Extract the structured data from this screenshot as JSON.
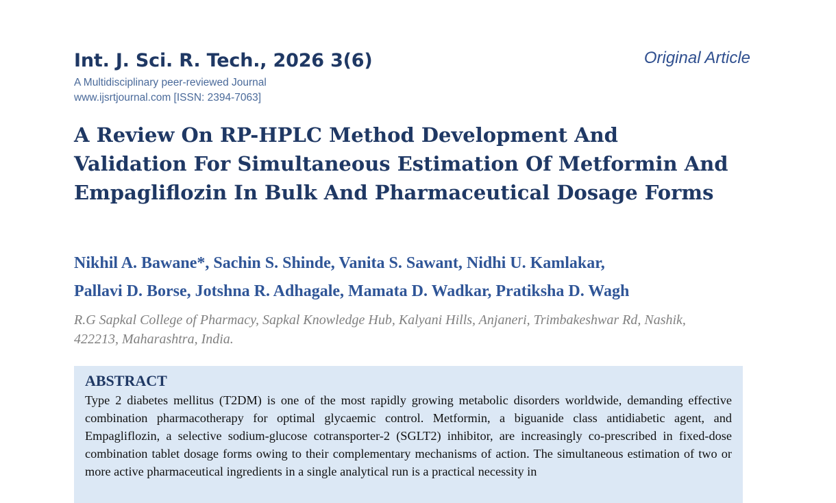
{
  "journal": {
    "title": "Int. J. Sci. R. Tech., 2026 3(6)",
    "tagline": "A Multidisciplinary peer-reviewed Journal",
    "website": "www.ijsrtjournal.com [ISSN: 2394-7063]"
  },
  "article_type": "Original Article",
  "paper": {
    "title": "A Review On RP-HPLC Method Development And Validation For Simultaneous Estimation Of Metformin And Empagliflozin In Bulk And Pharmaceutical Dosage Forms",
    "authors_line1": "Nikhil A. Bawane*, Sachin S. Shinde, Vanita S. Sawant, Nidhi U. Kamlakar,",
    "authors_line2": "Pallavi D. Borse, Jotshna R. Adhagale, Mamata D. Wadkar, Pratiksha D. Wagh",
    "affiliation": "R.G Sapkal College of Pharmacy, Sapkal Knowledge Hub, Kalyani Hills, Anjaneri, Trimbakeshwar Rd, Nashik, 422213, Maharashtra, India."
  },
  "abstract": {
    "heading": "ABSTRACT",
    "text": "Type 2 diabetes mellitus (T2DM) is one of the most rapidly growing metabolic disorders worldwide, demanding effective combination pharmacotherapy for optimal glycaemic control. Metformin, a biguanide class antidiabetic agent, and Empagliflozin, a selective sodium-glucose cotransporter-2 (SGLT2) inhibitor, are increasingly co-prescribed in fixed-dose combination tablet dosage forms owing to their complementary mechanisms of action. The simultaneous estimation of two or more active pharmaceutical ingredients in a single analytical run is a practical necessity in"
  },
  "colors": {
    "navy": "#1f3864",
    "author_blue": "#2f5597",
    "abstract_bg": "#dce8f5"
  }
}
